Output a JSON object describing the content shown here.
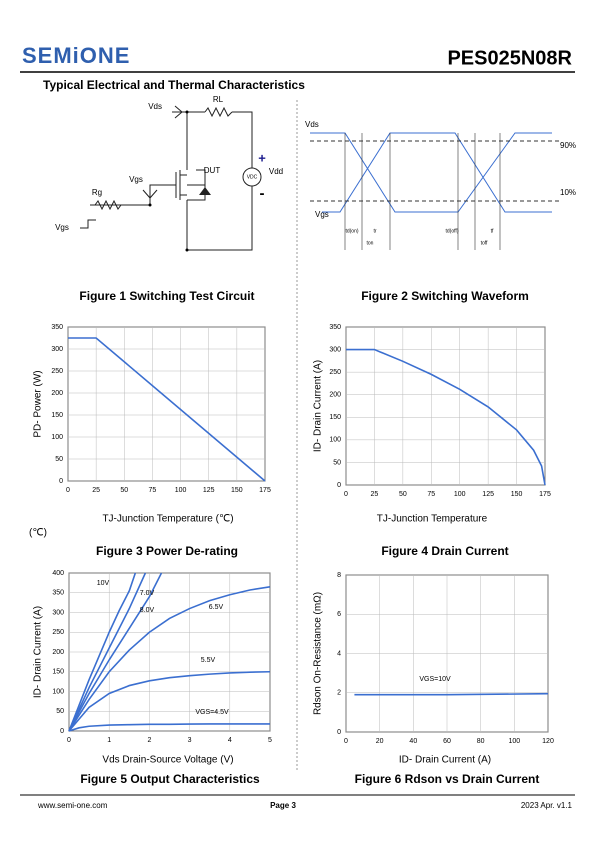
{
  "header": {
    "logo": "SEMiONE",
    "part": "PES025N08R",
    "section": "Typical Electrical and Thermal Characteristics"
  },
  "figure1": {
    "caption": "Figure 1 Switching Test Circuit",
    "labels": [
      "Vds",
      "RL",
      "DUT",
      "Vdd",
      "VDC",
      "+",
      "-",
      "Vgs",
      "Rg",
      "Vgs"
    ]
  },
  "figure2": {
    "caption": "Figure 2 Switching Waveform",
    "labels": [
      "Vds",
      "Vgs",
      "90%",
      "10%",
      "td(on)",
      "tr",
      "ton",
      "td(off)",
      "tf",
      "toff"
    ]
  },
  "chart_data": [
    {
      "type": "line",
      "title": "Figure 3 Power De-rating",
      "x_label": "TJ-Junction Temperature (℃)",
      "y_label": "PD- Power (W)",
      "note": "(℃)",
      "xlim": [
        0,
        175
      ],
      "xticks": [
        0,
        25,
        50,
        75,
        100,
        125,
        150,
        175
      ],
      "ylim": [
        0,
        350
      ],
      "yticks": [
        0,
        50,
        100,
        150,
        200,
        250,
        300,
        350
      ],
      "grid": true,
      "series": [
        {
          "color": "#3b6fd0",
          "x": [
            0,
            25,
            175
          ],
          "values": [
            325,
            325,
            0
          ]
        }
      ]
    },
    {
      "type": "line",
      "title": "Figure 4 Drain Current",
      "x_label": "TJ-Junction Temperature",
      "y_label": "ID- Drain Current (A)",
      "xlim": [
        0,
        175
      ],
      "xticks": [
        0,
        25,
        50,
        75,
        100,
        125,
        150,
        175
      ],
      "ylim": [
        0,
        350
      ],
      "yticks": [
        0,
        50,
        100,
        150,
        200,
        250,
        300,
        350
      ],
      "grid": true,
      "series": [
        {
          "color": "#3b6fd0",
          "x": [
            0,
            25,
            50,
            75,
            100,
            125,
            150,
            165,
            172,
            175
          ],
          "values": [
            300,
            300,
            274,
            245,
            212,
            173,
            122,
            77,
            42,
            0
          ]
        }
      ]
    },
    {
      "type": "line",
      "title": "Figure 5 Output Characteristics",
      "x_label": "Vds Drain-Source Voltage (V)",
      "y_label": "ID- Drain Current (A)",
      "xlim": [
        0,
        5
      ],
      "xticks": [
        0,
        1,
        2,
        3,
        4,
        5
      ],
      "ylim": [
        0,
        400
      ],
      "yticks": [
        0,
        50,
        100,
        150,
        200,
        250,
        300,
        350,
        400
      ],
      "grid": true,
      "series": [
        {
          "name": "10V",
          "color": "#3b6fd0",
          "x": [
            0,
            0.25,
            0.5,
            0.75,
            1,
            1.25,
            1.5,
            1.65
          ],
          "values": [
            0,
            65,
            130,
            190,
            250,
            305,
            355,
            400
          ]
        },
        {
          "name": "7.0V",
          "color": "#3b6fd0",
          "x": [
            0,
            0.25,
            0.5,
            1,
            1.5,
            2,
            2.3
          ],
          "values": [
            0,
            48,
            95,
            180,
            260,
            340,
            400
          ]
        },
        {
          "name": "8.0V",
          "color": "#3b6fd0",
          "x": [
            0,
            0.25,
            0.5,
            1,
            1.5,
            1.9
          ],
          "values": [
            0,
            55,
            110,
            210,
            310,
            400
          ]
        },
        {
          "name": "6.5V",
          "color": "#3b6fd0",
          "x": [
            0,
            0.25,
            0.5,
            1,
            1.5,
            2,
            2.5,
            3,
            3.5,
            4,
            4.5,
            5
          ],
          "values": [
            0,
            40,
            80,
            150,
            205,
            250,
            285,
            310,
            330,
            345,
            357,
            365
          ]
        },
        {
          "name": "5.5V",
          "color": "#3b6fd0",
          "x": [
            0,
            0.25,
            0.5,
            1,
            1.5,
            2,
            2.5,
            3,
            3.5,
            4,
            4.5,
            5
          ],
          "values": [
            0,
            30,
            60,
            95,
            115,
            127,
            135,
            140,
            144,
            147,
            149,
            150
          ]
        },
        {
          "name": "VGS=4.5V",
          "color": "#3b6fd0",
          "x": [
            0,
            0.25,
            0.5,
            1,
            1.5,
            2,
            2.5,
            3,
            3.5,
            4,
            4.5,
            5
          ],
          "values": [
            0,
            8,
            12,
            15,
            16,
            17,
            17,
            17.5,
            18,
            18,
            18,
            18
          ]
        }
      ]
    },
    {
      "type": "line",
      "title": "Figure 6 Rdson vs Drain Current",
      "x_label": "ID- Drain Current (A)",
      "y_label": "Rdson On-Resistance (mΩ)",
      "xlim": [
        0,
        120
      ],
      "xticks": [
        0,
        20,
        40,
        60,
        80,
        100,
        120
      ],
      "ylim": [
        0,
        8
      ],
      "yticks": [
        0,
        2,
        4,
        6,
        8
      ],
      "grid": true,
      "series": [
        {
          "name": "VGS=10V",
          "color": "#3b6fd0",
          "x": [
            5,
            60,
            120
          ],
          "values": [
            1.9,
            1.9,
            1.95
          ]
        }
      ]
    }
  ],
  "footer": {
    "website": "www.semi-one.com",
    "page": "Page 3",
    "date": "2023 Apr. v1.1"
  }
}
